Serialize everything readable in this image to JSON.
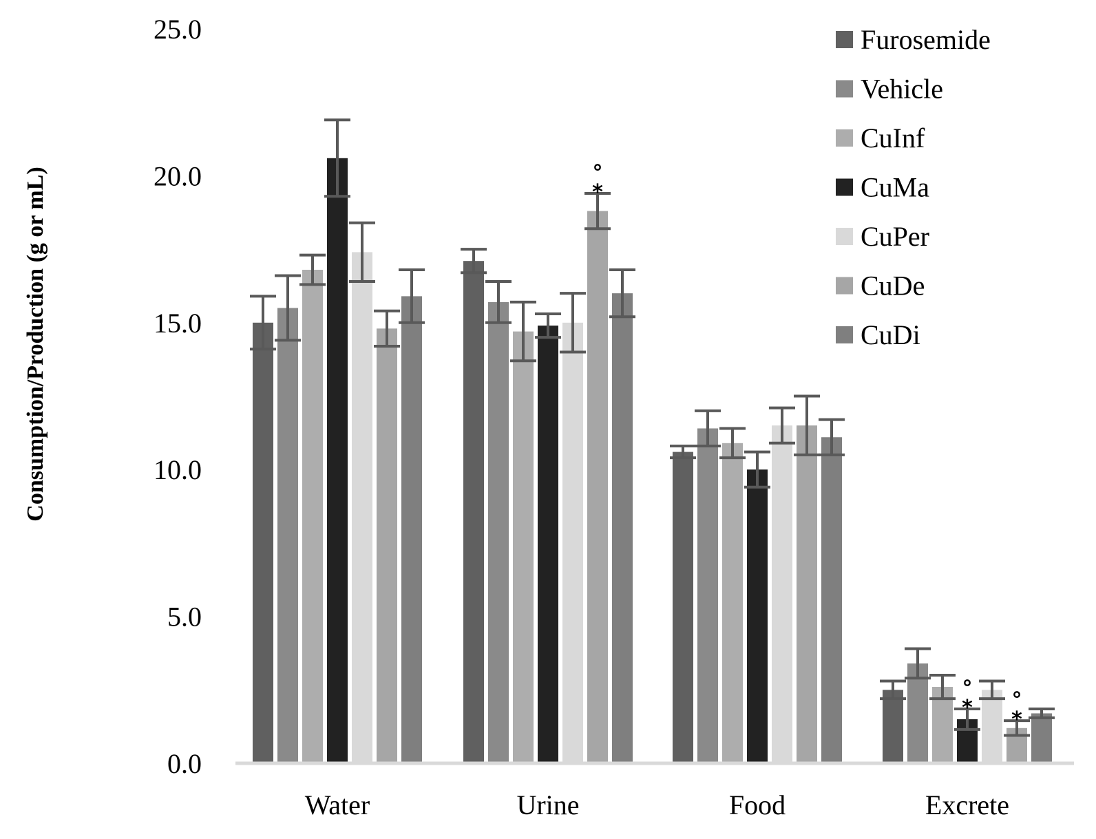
{
  "chart_data": {
    "type": "bar",
    "title": "",
    "xlabel": "",
    "ylabel": "Consumption/Production (g or mL)",
    "ylim": [
      0,
      25
    ],
    "yticks": [
      "0.0",
      "5.0",
      "10.0",
      "15.0",
      "20.0",
      "25.0"
    ],
    "ytick_values": [
      0,
      5,
      10,
      15,
      20,
      25
    ],
    "grid": false,
    "legend_position": "top-right",
    "categories": [
      "Water",
      "Urine",
      "Food",
      "Excrete"
    ],
    "series": [
      {
        "name": "Furosemide",
        "color": "#606060",
        "values": [
          15.0,
          17.1,
          10.6,
          2.5
        ],
        "errors": [
          0.9,
          0.4,
          0.2,
          0.3
        ]
      },
      {
        "name": "Vehicle",
        "color": "#8a8a8a",
        "values": [
          15.5,
          15.7,
          11.4,
          3.4
        ],
        "errors": [
          1.1,
          0.7,
          0.6,
          0.5
        ]
      },
      {
        "name": "CuInf",
        "color": "#adadad",
        "values": [
          16.8,
          14.7,
          10.9,
          2.6
        ],
        "errors": [
          0.5,
          1.0,
          0.5,
          0.4
        ]
      },
      {
        "name": "CuMa",
        "color": "#222222",
        "values": [
          20.6,
          14.9,
          10.0,
          1.5
        ],
        "errors": [
          1.3,
          0.4,
          0.6,
          0.35
        ]
      },
      {
        "name": "CuPer",
        "color": "#d9d9d9",
        "values": [
          17.4,
          15.0,
          11.5,
          2.5
        ],
        "errors": [
          1.0,
          1.0,
          0.6,
          0.3
        ]
      },
      {
        "name": "CuDe",
        "color": "#a6a6a6",
        "values": [
          14.8,
          18.8,
          11.5,
          1.2
        ],
        "errors": [
          0.6,
          0.6,
          1.0,
          0.25
        ]
      },
      {
        "name": "CuDi",
        "color": "#7f7f7f",
        "values": [
          15.9,
          16.0,
          11.1,
          1.7
        ],
        "errors": [
          0.9,
          0.8,
          0.6,
          0.15
        ]
      }
    ],
    "error_bar_color": "#595959",
    "annotations": [
      {
        "category": "Urine",
        "series": "CuDe",
        "symbols": [
          "*",
          "°"
        ]
      },
      {
        "category": "Excrete",
        "series": "CuMa",
        "symbols": [
          "*",
          "°"
        ]
      },
      {
        "category": "Excrete",
        "series": "CuDe",
        "symbols": [
          "*",
          "°"
        ]
      }
    ]
  }
}
